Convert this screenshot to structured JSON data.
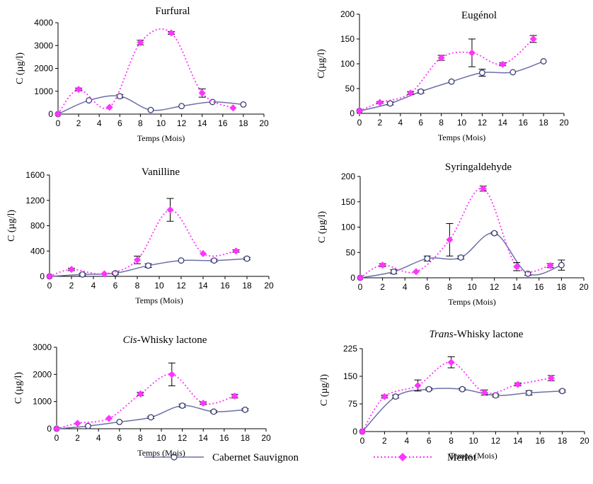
{
  "legend": {
    "items": [
      {
        "name": "Cabernet Sauvignon",
        "color": "#6b70a8",
        "style": "solid",
        "marker": "open-circle"
      },
      {
        "name": "Merlot",
        "color": "#ff33ff",
        "style": "dotted",
        "marker": "diamond"
      }
    ],
    "placement": "bottom"
  },
  "chart_data": [
    {
      "type": "line",
      "title": "Furfural",
      "xlabel": "Temps (Mois)",
      "ylabel": "C (µg/l)",
      "xlim": [
        0,
        20
      ],
      "xticks": [
        0,
        2,
        4,
        6,
        8,
        10,
        12,
        14,
        16,
        18,
        20
      ],
      "ylim": [
        0,
        4000
      ],
      "yticks": [
        0,
        1000,
        2000,
        3000,
        4000
      ],
      "series": [
        {
          "name": "Cabernet Sauvignon",
          "x": [
            0,
            3,
            6,
            9,
            12,
            15,
            18
          ],
          "y": [
            0,
            600,
            780,
            180,
            350,
            530,
            420
          ],
          "err": [
            0,
            0,
            70,
            0,
            0,
            0,
            0
          ]
        },
        {
          "name": "Merlot",
          "x": [
            0,
            2,
            5,
            8,
            11,
            14,
            17
          ],
          "y": [
            0,
            1080,
            300,
            3130,
            3550,
            920,
            270
          ],
          "err": [
            0,
            60,
            0,
            100,
            60,
            180,
            0
          ]
        }
      ]
    },
    {
      "type": "line",
      "title": "Eugénol",
      "xlabel": "Temps (Mois)",
      "ylabel": "C(µg/l)",
      "xlim": [
        0,
        20
      ],
      "xticks": [
        0,
        2,
        4,
        6,
        8,
        10,
        12,
        14,
        16,
        18,
        20
      ],
      "ylim": [
        0,
        200
      ],
      "yticks": [
        0,
        50,
        100,
        150,
        200
      ],
      "series": [
        {
          "name": "Cabernet Sauvignon",
          "x": [
            0,
            3,
            6,
            9,
            12,
            15,
            18
          ],
          "y": [
            5,
            20,
            44,
            64,
            82,
            83,
            105
          ],
          "err": [
            0,
            3,
            3,
            0,
            7,
            0,
            0
          ]
        },
        {
          "name": "Merlot",
          "x": [
            0,
            2,
            5,
            8,
            11,
            14,
            17
          ],
          "y": [
            5,
            22,
            41,
            112,
            122,
            99,
            150
          ],
          "err": [
            0,
            2,
            3,
            5,
            28,
            3,
            7
          ]
        }
      ]
    },
    {
      "type": "line",
      "title": "Vanilline",
      "xlabel": "Temps (Mois)",
      "ylabel": "C (µg/l)",
      "xlim": [
        0,
        20
      ],
      "xticks": [
        0,
        2,
        4,
        6,
        8,
        10,
        12,
        14,
        16,
        18,
        20
      ],
      "ylim": [
        0,
        1600
      ],
      "yticks": [
        0,
        400,
        800,
        1200,
        1600
      ],
      "series": [
        {
          "name": "Cabernet Sauvignon",
          "x": [
            0,
            3,
            6,
            9,
            12,
            15,
            18
          ],
          "y": [
            0,
            30,
            50,
            170,
            250,
            250,
            280
          ],
          "err": [
            0,
            20,
            20,
            30,
            0,
            20,
            20
          ]
        },
        {
          "name": "Merlot",
          "x": [
            0,
            2,
            5,
            8,
            11,
            14,
            17
          ],
          "y": [
            0,
            110,
            40,
            260,
            1050,
            360,
            400
          ],
          "err": [
            0,
            20,
            0,
            60,
            180,
            0,
            20
          ]
        }
      ]
    },
    {
      "type": "line",
      "title": "Syringaldehyde",
      "xlabel": "Temps (Mois)",
      "ylabel": "C (µg/l)",
      "xlim": [
        0,
        20
      ],
      "xticks": [
        0,
        2,
        4,
        6,
        8,
        10,
        12,
        14,
        16,
        18,
        20
      ],
      "ylim": [
        0,
        200
      ],
      "yticks": [
        0,
        50,
        100,
        150,
        200
      ],
      "series": [
        {
          "name": "Cabernet Sauvignon",
          "x": [
            0,
            3,
            6,
            9,
            12,
            15,
            18
          ],
          "y": [
            0,
            12,
            38,
            40,
            88,
            8,
            25
          ],
          "err": [
            0,
            4,
            5,
            3,
            2,
            3,
            10
          ]
        },
        {
          "name": "Merlot",
          "x": [
            0,
            2,
            5,
            8,
            11,
            14,
            17
          ],
          "y": [
            0,
            25,
            12,
            75,
            176,
            22,
            24
          ],
          "err": [
            0,
            3,
            0,
            32,
            5,
            8,
            4
          ]
        }
      ]
    },
    {
      "type": "line",
      "title": "Cis-Whisky lactone",
      "title_italic": "Cis",
      "title_rest": "-Whisky lactone",
      "xlabel": "Temps (Mois)",
      "ylabel": "C (µg/l)",
      "xlim": [
        0,
        20
      ],
      "xticks": [
        0,
        2,
        4,
        6,
        8,
        10,
        12,
        14,
        16,
        18,
        20
      ],
      "ylim": [
        0,
        3000
      ],
      "yticks": [
        0,
        1000,
        2000,
        3000
      ],
      "series": [
        {
          "name": "Cabernet Sauvignon",
          "x": [
            0,
            3,
            6,
            9,
            12,
            15,
            18
          ],
          "y": [
            0,
            100,
            250,
            420,
            850,
            630,
            700
          ],
          "err": [
            0,
            0,
            0,
            40,
            60,
            40,
            40
          ]
        },
        {
          "name": "Merlot",
          "x": [
            0,
            2,
            5,
            8,
            11,
            14,
            17
          ],
          "y": [
            0,
            200,
            380,
            1280,
            2000,
            940,
            1200
          ],
          "err": [
            0,
            0,
            0,
            60,
            420,
            50,
            70
          ]
        }
      ]
    },
    {
      "type": "line",
      "title": "Trans-Whisky lactone",
      "title_italic": "Trans",
      "title_rest": "-Whisky lactone",
      "xlabel": "Temps (Mois)",
      "ylabel": "C (µg/l)",
      "xlim": [
        0,
        20
      ],
      "xticks": [
        0,
        2,
        4,
        6,
        8,
        10,
        12,
        14,
        16,
        18,
        20
      ],
      "ylim": [
        0,
        225
      ],
      "yticks": [
        0,
        75,
        150,
        225
      ],
      "series": [
        {
          "name": "Cabernet Sauvignon",
          "x": [
            0,
            3,
            6,
            9,
            12,
            15,
            18
          ],
          "y": [
            0,
            95,
            115,
            115,
            98,
            105,
            110
          ],
          "err": [
            0,
            4,
            3,
            3,
            4,
            6,
            3
          ]
        },
        {
          "name": "Merlot",
          "x": [
            0,
            2,
            5,
            8,
            11,
            14,
            17
          ],
          "y": [
            0,
            95,
            125,
            188,
            106,
            128,
            145
          ],
          "err": [
            0,
            4,
            15,
            15,
            7,
            4,
            7
          ]
        }
      ]
    }
  ]
}
